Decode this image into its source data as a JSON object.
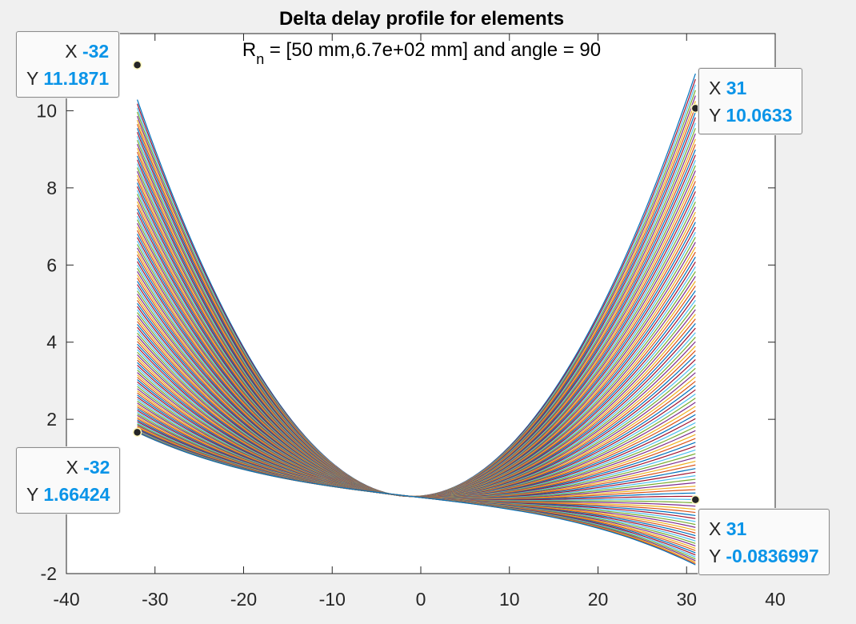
{
  "chart_data": {
    "type": "line",
    "title": "Delta delay profile for elements",
    "subtitle_main": "R",
    "subtitle_sub": "n",
    "subtitle_rest": " = [50 mm,6.7e+02 mm] and angle = 90",
    "xlabel": "",
    "ylabel": "",
    "xlim": [
      -40,
      40
    ],
    "ylim": [
      -2,
      12
    ],
    "xticks": [
      -40,
      -30,
      -20,
      -10,
      0,
      10,
      20,
      30,
      40
    ],
    "yticks": [
      -2,
      2,
      4,
      6,
      8,
      10
    ],
    "grid": false,
    "x_range": [
      -32,
      31
    ],
    "vertex_x": -1,
    "top_curve": {
      "left_y": 11.1871,
      "right_y": 10.0633
    },
    "bottom_curve": {
      "left_y": 1.66424,
      "right_y": -0.0836997
    },
    "series_count": 120,
    "datatips": [
      {
        "x": "-32",
        "y": "11.1871"
      },
      {
        "x": "31",
        "y": "10.0633"
      },
      {
        "x": "-32",
        "y": "1.66424"
      },
      {
        "x": "31",
        "y": "-0.0836997"
      }
    ]
  },
  "tip_labels": {
    "x": "X",
    "y": "Y"
  }
}
